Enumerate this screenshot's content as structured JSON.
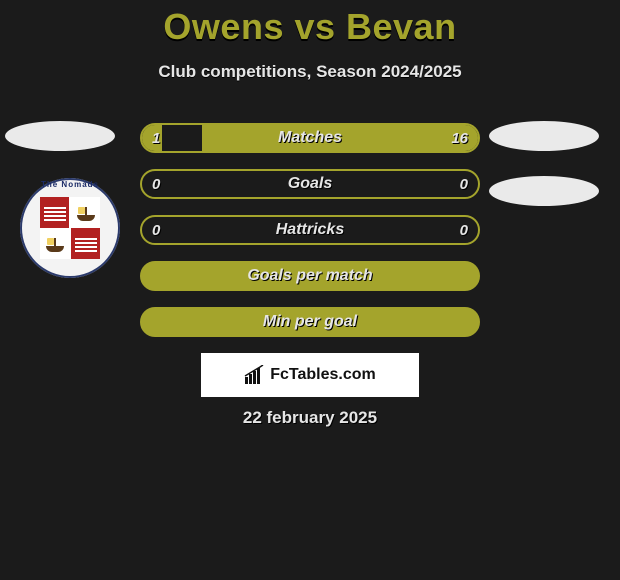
{
  "title": "Owens vs Bevan",
  "subtitle": "Club competitions, Season 2024/2025",
  "accent_color": "#a4a42c",
  "background_color": "#1b1b1b",
  "text_color": "#e6e6e6",
  "side_ellipse_color": "#eaeaea",
  "crest": {
    "ring_color": "#2b3a6b",
    "ring_text": "The Nomads",
    "quad_red": "#b22121"
  },
  "bars": [
    {
      "key": "matches",
      "label": "Matches",
      "left": "1",
      "right": "16",
      "left_pct": 6,
      "right_pct": 82,
      "kind": "split"
    },
    {
      "key": "goals",
      "label": "Goals",
      "left": "0",
      "right": "0",
      "left_pct": 0,
      "right_pct": 0,
      "kind": "split"
    },
    {
      "key": "hat",
      "label": "Hattricks",
      "left": "0",
      "right": "0",
      "left_pct": 0,
      "right_pct": 0,
      "kind": "split"
    },
    {
      "key": "gpm",
      "label": "Goals per match",
      "left": "",
      "right": "",
      "left_pct": 0,
      "right_pct": 0,
      "kind": "full"
    },
    {
      "key": "mpg",
      "label": "Min per goal",
      "left": "",
      "right": "",
      "left_pct": 0,
      "right_pct": 0,
      "kind": "full"
    }
  ],
  "brand": "FcTables.com",
  "date": "22 february 2025"
}
